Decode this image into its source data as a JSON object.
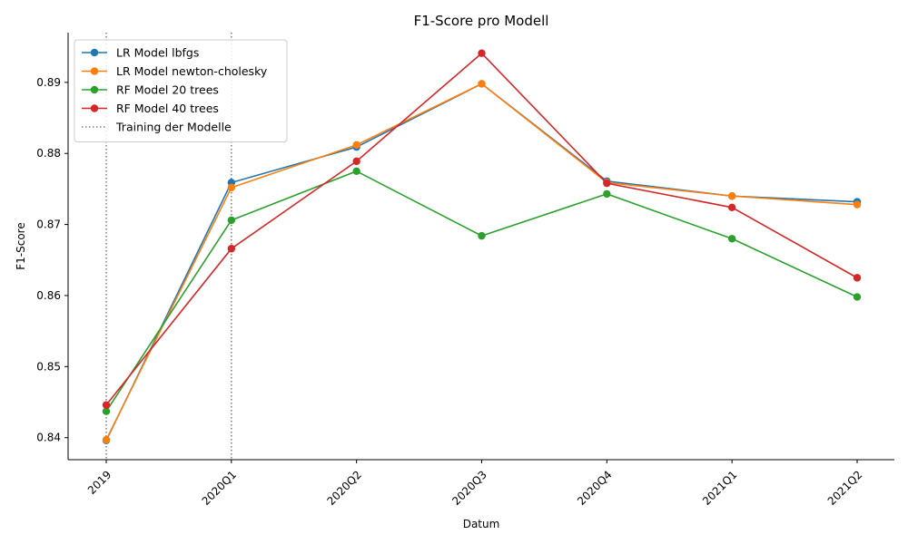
{
  "chart_data": {
    "type": "line",
    "title": "F1-Score pro Modell",
    "xlabel": "Datum",
    "ylabel": "F1-Score",
    "categories": [
      "2019",
      "2020Q1",
      "2020Q2",
      "2020Q3",
      "2020Q4",
      "2021Q1",
      "2021Q2"
    ],
    "ylim": [
      0.8369,
      0.897
    ],
    "yticks": [
      "0.84",
      "0.85",
      "0.86",
      "0.87",
      "0.88",
      "0.89"
    ],
    "grid": false,
    "legend_position": "top-left",
    "series": [
      {
        "name": "LR Model lbfgs",
        "color": "#1f77b4",
        "values": [
          0.8396,
          0.8759,
          0.8809,
          0.8898,
          0.8761,
          0.874,
          0.8732
        ]
      },
      {
        "name": "LR Model newton-cholesky",
        "color": "#ff7f0e",
        "values": [
          0.8397,
          0.8752,
          0.8812,
          0.8898,
          0.8759,
          0.874,
          0.8728
        ]
      },
      {
        "name": "RF Model 20 trees",
        "color": "#2ca02c",
        "values": [
          0.8437,
          0.8706,
          0.8775,
          0.8684,
          0.8743,
          0.868,
          0.8598
        ]
      },
      {
        "name": "RF Model 40 trees",
        "color": "#d62728",
        "values": [
          0.8446,
          0.8666,
          0.8789,
          0.8941,
          0.8758,
          0.8724,
          0.8625
        ]
      }
    ],
    "vlines": {
      "name": "Training der Modelle",
      "color": "#7f7f7f",
      "at": [
        "2019",
        "2020Q1"
      ]
    }
  }
}
